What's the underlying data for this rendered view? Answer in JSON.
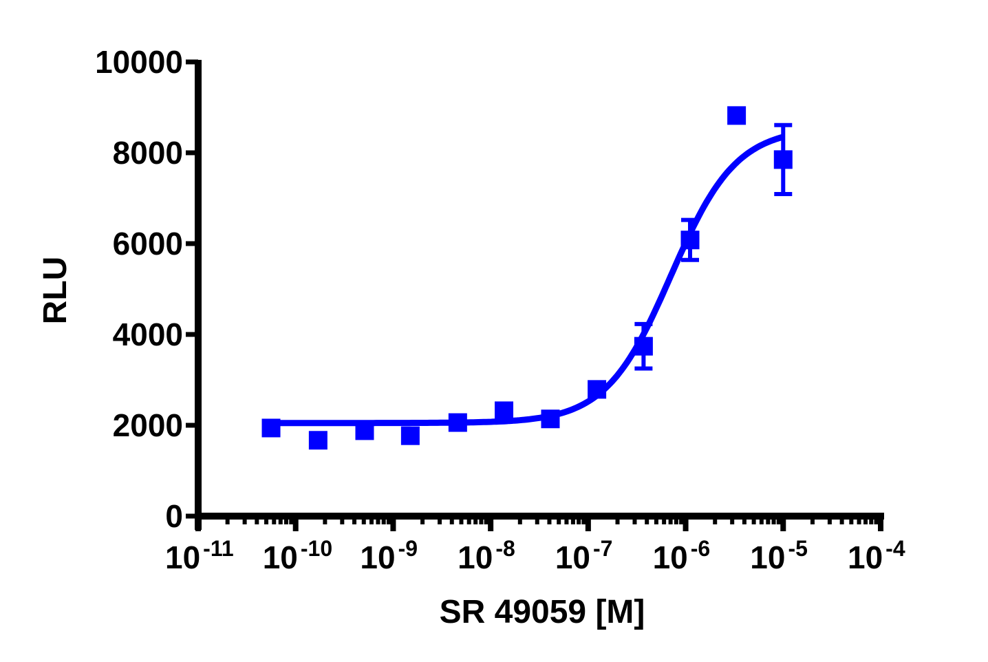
{
  "chart_data": {
    "type": "scatter",
    "title": "",
    "xlabel": "SR 49059 [M]",
    "ylabel": "RLU",
    "xscale": "log",
    "xlim": [
      1e-11,
      0.0001
    ],
    "ylim": [
      0,
      10000
    ],
    "grid": false,
    "legend": null,
    "x_tick_labels": [
      {
        "base": "10",
        "exp": "-11"
      },
      {
        "base": "10",
        "exp": "-10"
      },
      {
        "base": "10",
        "exp": "-9"
      },
      {
        "base": "10",
        "exp": "-8"
      },
      {
        "base": "10",
        "exp": "-7"
      },
      {
        "base": "10",
        "exp": "-6"
      },
      {
        "base": "10",
        "exp": "-5"
      },
      {
        "base": "10",
        "exp": "-4"
      }
    ],
    "y_tick_labels": [
      "0",
      "2000",
      "4000",
      "6000",
      "8000",
      "10000"
    ],
    "color": "#0000ff",
    "series": [
      {
        "name": "SR 49059",
        "marker": "square",
        "x": [
          5.6e-11,
          1.7e-10,
          5.1e-10,
          1.5e-09,
          4.6e-09,
          1.37e-08,
          4.1e-08,
          1.23e-07,
          3.7e-07,
          1.11e-06,
          3.33e-06,
          1e-05
        ],
        "y": [
          1940,
          1670,
          1880,
          1770,
          2060,
          2320,
          2140,
          2790,
          3740,
          6080,
          8820,
          7850
        ],
        "error": [
          0,
          0,
          0,
          0,
          0,
          0,
          0,
          0,
          490,
          440,
          0,
          760
        ]
      }
    ],
    "fit": {
      "type": "four-parameter logistic",
      "bottom": 2050,
      "top": 8550,
      "logEC50": -6.15,
      "hill": 1.3
    }
  }
}
